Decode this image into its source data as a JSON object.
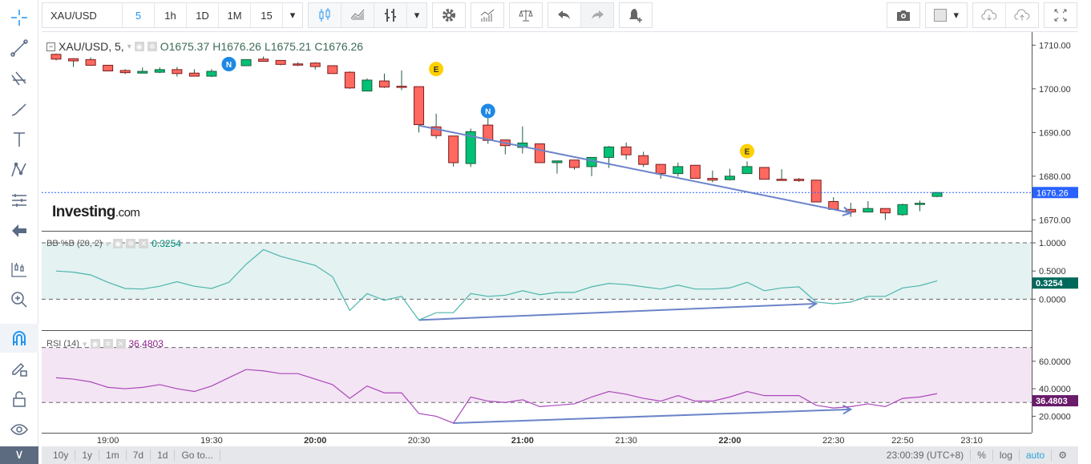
{
  "toolbar": {
    "symbol": "XAU/USD",
    "intervals": [
      "5",
      "1h",
      "1D",
      "1M",
      "15"
    ],
    "active_interval": "5"
  },
  "legend": {
    "title": "XAU/USD, 5,",
    "open": "O1675.37",
    "high": "H1676.26",
    "low": "L1675.21",
    "close": "C1676.26"
  },
  "indicators": {
    "bb": {
      "name": "BB %B (20, 2)",
      "value": "0.3254",
      "color": "#4db6ac"
    },
    "rsi": {
      "name": "RSI (14)",
      "value": "36.4803",
      "color": "#ab47bc"
    }
  },
  "logo": {
    "brand": "Investing",
    "suffix": ".com"
  },
  "price_axis": {
    "ticks": [
      "1710.00",
      "1700.00",
      "1690.00",
      "1680.00",
      "1670.00"
    ],
    "tick_values": [
      1710,
      1700,
      1690,
      1680,
      1670
    ],
    "last_price": "1676.26",
    "bb_ticks": [
      "1.0000",
      "0.5000",
      "0.0000"
    ],
    "bb_tick_values": [
      1,
      0.5,
      0
    ],
    "rsi_ticks": [
      "60.0000",
      "40.0000",
      "20.0000"
    ],
    "rsi_tick_values": [
      60,
      40,
      20
    ]
  },
  "time_axis": {
    "labels": [
      "19:00",
      "19:30",
      "20:00",
      "20:30",
      "21:00",
      "21:30",
      "22:00",
      "22:30",
      "22:50",
      "23:10"
    ],
    "bold": [
      "20:00",
      "21:00",
      "22:00"
    ]
  },
  "bottom": {
    "ranges": [
      "10y",
      "1y",
      "1m",
      "7d",
      "1d",
      "Go to..."
    ],
    "clock": "23:00:39 (UTC+8)",
    "percent": "%",
    "log": "log",
    "auto": "auto"
  },
  "colors": {
    "up": "#00c176",
    "down": "#ff6960",
    "wick": "#1d5c3b",
    "trend": "#6b84c9",
    "last_price": "#2962ff"
  },
  "chart_data": {
    "type": "candlestick",
    "interval_minutes": 5,
    "first_time": "18:45",
    "ylim": [
      1667.5,
      1713
    ],
    "candles": [
      [
        1707.9,
        1708.1,
        1706.5,
        1706.8
      ],
      [
        1706.9,
        1707.0,
        1705.0,
        1706.4
      ],
      [
        1706.7,
        1707.2,
        1705.3,
        1705.4
      ],
      [
        1705.4,
        1705.4,
        1704.1,
        1704.1
      ],
      [
        1704.2,
        1704.5,
        1703.4,
        1703.7
      ],
      [
        1703.6,
        1704.9,
        1703.6,
        1704.0
      ],
      [
        1703.8,
        1704.9,
        1703.6,
        1704.4
      ],
      [
        1704.4,
        1705.0,
        1702.8,
        1703.5
      ],
      [
        1703.6,
        1704.5,
        1702.9,
        1702.9
      ],
      [
        1702.9,
        1704.5,
        1702.7,
        1704.0
      ],
      [
        1704.9,
        1705.6,
        1704.9,
        1705.3
      ],
      [
        1705.3,
        1706.7,
        1705.3,
        1706.7
      ],
      [
        1706.8,
        1707.4,
        1706.2,
        1706.3
      ],
      [
        1706.5,
        1706.5,
        1705.4,
        1705.6
      ],
      [
        1705.7,
        1706.1,
        1705.2,
        1705.6
      ],
      [
        1705.9,
        1706.1,
        1704.4,
        1705.1
      ],
      [
        1705.3,
        1705.3,
        1703.5,
        1703.5
      ],
      [
        1703.8,
        1704.0,
        1700.0,
        1700.2
      ],
      [
        1699.5,
        1702.4,
        1699.5,
        1702.0
      ],
      [
        1701.8,
        1703.5,
        1700.2,
        1700.4
      ],
      [
        1700.6,
        1704.2,
        1699.7,
        1700.4
      ],
      [
        1700.5,
        1700.5,
        1690.0,
        1691.8
      ],
      [
        1691.3,
        1694.3,
        1688.6,
        1689.3
      ],
      [
        1689.2,
        1689.2,
        1682.2,
        1683.1
      ],
      [
        1682.9,
        1690.9,
        1682.1,
        1690.2
      ],
      [
        1691.7,
        1693.6,
        1687.4,
        1688.2
      ],
      [
        1688.3,
        1688.3,
        1685.0,
        1687.0
      ],
      [
        1686.6,
        1691.4,
        1685.2,
        1687.6
      ],
      [
        1687.4,
        1687.4,
        1683.1,
        1683.1
      ],
      [
        1683.1,
        1683.5,
        1680.6,
        1683.5
      ],
      [
        1683.7,
        1683.7,
        1681.5,
        1682.0
      ],
      [
        1682.2,
        1684.3,
        1680.0,
        1684.3
      ],
      [
        1684.3,
        1686.9,
        1681.9,
        1686.7
      ],
      [
        1686.7,
        1687.7,
        1683.8,
        1684.9
      ],
      [
        1684.7,
        1685.6,
        1682.1,
        1682.7
      ],
      [
        1682.7,
        1682.7,
        1679.4,
        1680.6
      ],
      [
        1680.6,
        1683.1,
        1679.9,
        1682.2
      ],
      [
        1682.5,
        1682.5,
        1679.5,
        1679.5
      ],
      [
        1679.5,
        1681.3,
        1678.6,
        1679.1
      ],
      [
        1679.2,
        1681.7,
        1679.0,
        1680.0
      ],
      [
        1680.6,
        1683.4,
        1680.6,
        1682.2
      ],
      [
        1682.0,
        1682.0,
        1679.3,
        1679.3
      ],
      [
        1679.3,
        1681.6,
        1679.1,
        1679.2
      ],
      [
        1679.3,
        1679.6,
        1678.7,
        1679.0
      ],
      [
        1679.1,
        1679.1,
        1674.1,
        1674.1
      ],
      [
        1674.2,
        1675.2,
        1672.4,
        1672.4
      ],
      [
        1672.4,
        1673.9,
        1670.7,
        1671.8
      ],
      [
        1671.8,
        1674.3,
        1671.8,
        1672.6
      ],
      [
        1672.6,
        1672.6,
        1670.0,
        1671.6
      ],
      [
        1671.2,
        1673.7,
        1670.9,
        1673.5
      ],
      [
        1673.6,
        1674.4,
        1672.0,
        1673.8
      ],
      [
        1675.37,
        1676.26,
        1675.21,
        1676.26
      ]
    ],
    "events": [
      {
        "index": 9,
        "label": "N",
        "color": "#1e88e5"
      },
      {
        "index": 21,
        "label": "E",
        "color": "#ffd000"
      },
      {
        "index": 24,
        "label": "N",
        "color": "#1e88e5"
      },
      {
        "index": 39,
        "label": "E",
        "color": "#ffd000"
      }
    ],
    "trendline": {
      "from": [
        21,
        1691.6
      ],
      "to": [
        46,
        1671.6
      ]
    },
    "bb_pct_b": {
      "ylim": [
        -0.55,
        1.2
      ],
      "bands": [
        1,
        0
      ],
      "values": [
        0.5,
        0.48,
        0.43,
        0.3,
        0.19,
        0.18,
        0.23,
        0.31,
        0.23,
        0.19,
        0.3,
        0.62,
        0.88,
        0.76,
        0.68,
        0.6,
        0.4,
        -0.2,
        0.1,
        -0.02,
        0.05,
        -0.37,
        -0.24,
        -0.24,
        0.1,
        0.05,
        0.07,
        0.15,
        0.08,
        0.12,
        0.12,
        0.22,
        0.28,
        0.26,
        0.22,
        0.18,
        0.25,
        0.18,
        0.18,
        0.2,
        0.3,
        0.15,
        0.2,
        0.22,
        -0.05,
        -0.08,
        -0.05,
        0.05,
        0.05,
        0.2,
        0.24,
        0.3254
      ],
      "trendline": {
        "from": [
          21,
          -0.37
        ],
        "to": [
          44,
          -0.08
        ]
      }
    },
    "rsi": {
      "ylim": [
        8,
        82
      ],
      "bands": [
        70,
        30
      ],
      "values": [
        48,
        47,
        45,
        41,
        40,
        41,
        43,
        40,
        38,
        42,
        48,
        54,
        53,
        51,
        51,
        47,
        43,
        33,
        42,
        37,
        37,
        22,
        20,
        15,
        34,
        31,
        30,
        32,
        27,
        28,
        29,
        34,
        38,
        36,
        33,
        31,
        35,
        31,
        31,
        34,
        38,
        35,
        35,
        35,
        28,
        26,
        27,
        29,
        27,
        33,
        34,
        36.48
      ],
      "trendline": {
        "from": [
          23,
          15
        ],
        "to": [
          46,
          25
        ]
      }
    }
  }
}
